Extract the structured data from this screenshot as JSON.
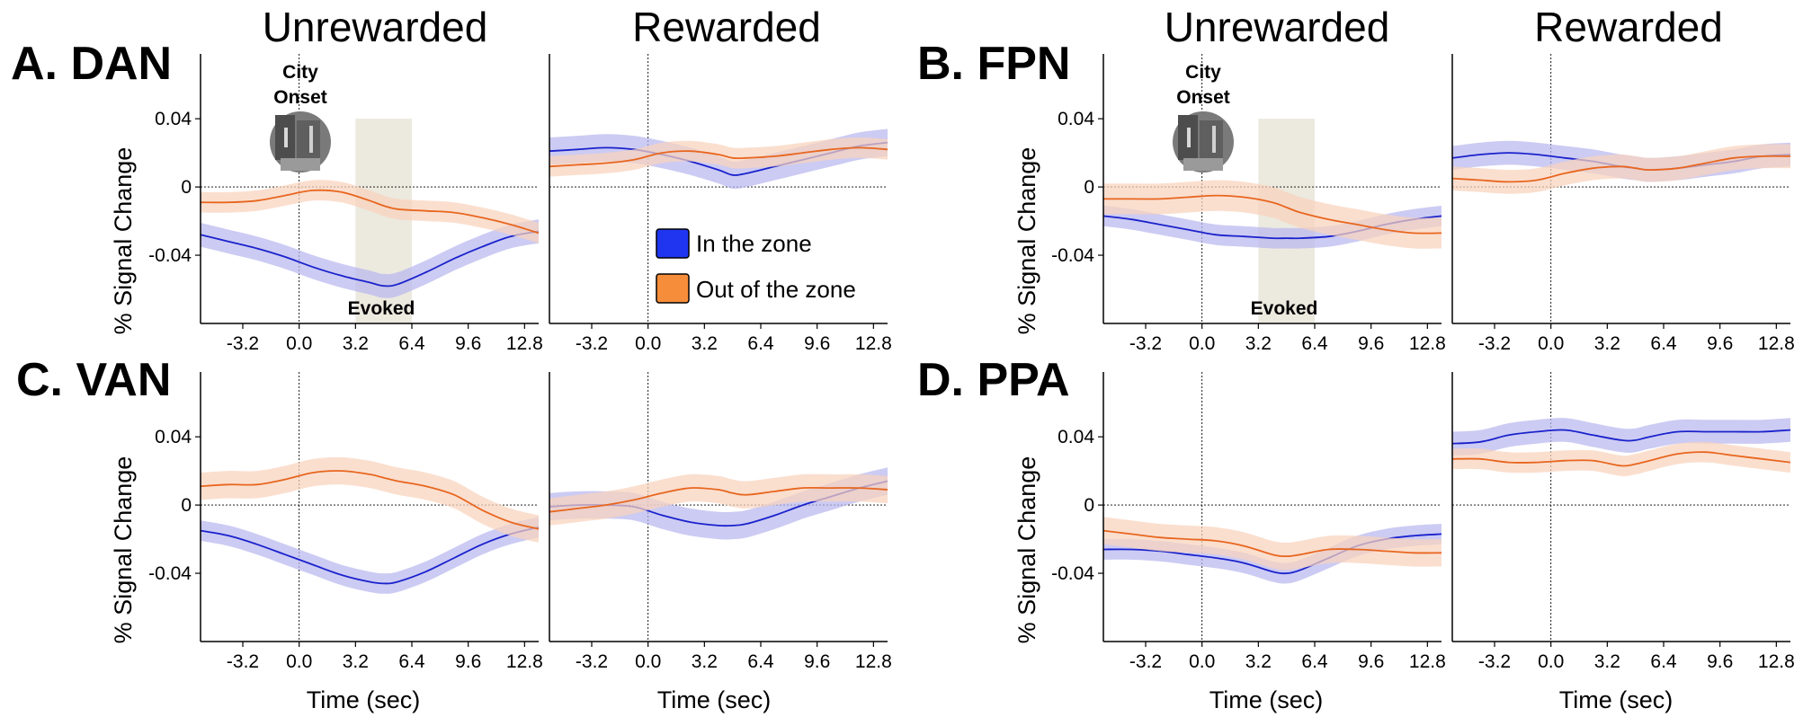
{
  "colors": {
    "in_zone": "#1a22cc",
    "in_zone_band": "#b9b7ef",
    "out_zone": "#e8661f",
    "out_zone_band": "#f8d3bd",
    "evoked_band": "#ece9df",
    "legend_in": "#1f35ef",
    "legend_out": "#f68d3a"
  },
  "column_titles": [
    "Unrewarded",
    "Rewarded",
    "Unrewarded",
    "Rewarded"
  ],
  "legend": {
    "in_zone": "In the zone",
    "out_zone": "Out of the zone"
  },
  "annotations": {
    "city_onset_line1": "City",
    "city_onset_line2": "Onset",
    "evoked": "Evoked"
  },
  "y_axis_label": "% Signal Change",
  "x_axis_label": "Time (sec)",
  "x_ticks": [
    "-3.2",
    "0.0",
    "3.2",
    "6.4",
    "9.6",
    "12.8"
  ],
  "y_ticks": [
    "0.04",
    "0",
    "-0.04"
  ],
  "chart_data": [
    {
      "type": "line",
      "panel": "A. DAN",
      "title": "Unrewarded",
      "xlabel": "",
      "ylabel": "% Signal Change",
      "xlim": [
        -5.6,
        13.6
      ],
      "ylim": [
        -0.08,
        0.078
      ],
      "x": [
        -5.6,
        -4.0,
        -2.4,
        -0.8,
        0.8,
        2.4,
        4.0,
        4.8,
        5.6,
        7.2,
        8.8,
        10.4,
        12.0,
        13.6
      ],
      "series": [
        {
          "name": "In the zone",
          "values": [
            -0.028,
            -0.032,
            -0.036,
            -0.041,
            -0.047,
            -0.052,
            -0.056,
            -0.058,
            -0.057,
            -0.05,
            -0.042,
            -0.035,
            -0.029,
            -0.026
          ],
          "error": 0.007
        },
        {
          "name": "Out of the zone",
          "values": [
            -0.009,
            -0.009,
            -0.008,
            -0.005,
            -0.002,
            -0.003,
            -0.008,
            -0.011,
            -0.013,
            -0.014,
            -0.015,
            -0.018,
            -0.022,
            -0.027
          ],
          "error": 0.006
        }
      ]
    },
    {
      "type": "line",
      "panel": "A. DAN",
      "title": "Rewarded",
      "xlabel": "",
      "ylabel": "",
      "xlim": [
        -5.6,
        13.6
      ],
      "ylim": [
        -0.08,
        0.078
      ],
      "x": [
        -5.6,
        -4.0,
        -2.4,
        -0.8,
        0.8,
        2.4,
        4.0,
        4.8,
        5.6,
        7.2,
        8.8,
        10.4,
        12.0,
        13.6
      ],
      "series": [
        {
          "name": "In the zone",
          "values": [
            0.021,
            0.022,
            0.023,
            0.022,
            0.019,
            0.015,
            0.01,
            0.007,
            0.008,
            0.012,
            0.016,
            0.02,
            0.024,
            0.026
          ],
          "error": 0.008
        },
        {
          "name": "Out of the zone",
          "values": [
            0.012,
            0.013,
            0.014,
            0.016,
            0.02,
            0.021,
            0.019,
            0.017,
            0.017,
            0.018,
            0.02,
            0.022,
            0.023,
            0.022
          ],
          "error": 0.006
        }
      ]
    },
    {
      "type": "line",
      "panel": "B. FPN",
      "title": "Unrewarded",
      "xlabel": "",
      "ylabel": "% Signal Change",
      "xlim": [
        -5.6,
        13.6
      ],
      "ylim": [
        -0.08,
        0.078
      ],
      "x": [
        -5.6,
        -4.0,
        -2.4,
        -0.8,
        0.8,
        2.4,
        4.0,
        4.8,
        5.6,
        7.2,
        8.8,
        10.4,
        12.0,
        13.6
      ],
      "series": [
        {
          "name": "In the zone",
          "values": [
            -0.017,
            -0.019,
            -0.022,
            -0.025,
            -0.028,
            -0.029,
            -0.03,
            -0.03,
            -0.03,
            -0.029,
            -0.026,
            -0.022,
            -0.019,
            -0.017
          ],
          "error": 0.006
        },
        {
          "name": "Out of the zone",
          "values": [
            -0.007,
            -0.007,
            -0.007,
            -0.006,
            -0.005,
            -0.006,
            -0.009,
            -0.012,
            -0.015,
            -0.019,
            -0.022,
            -0.025,
            -0.027,
            -0.027
          ],
          "error": 0.009
        }
      ]
    },
    {
      "type": "line",
      "panel": "B. FPN",
      "title": "Rewarded",
      "xlabel": "",
      "ylabel": "",
      "xlim": [
        -5.6,
        13.6
      ],
      "ylim": [
        -0.08,
        0.078
      ],
      "x": [
        -5.6,
        -4.0,
        -2.4,
        -0.8,
        0.8,
        2.4,
        4.0,
        4.8,
        5.6,
        7.2,
        8.8,
        10.4,
        12.0,
        13.6
      ],
      "series": [
        {
          "name": "In the zone",
          "values": [
            0.017,
            0.019,
            0.02,
            0.019,
            0.017,
            0.015,
            0.012,
            0.011,
            0.01,
            0.011,
            0.013,
            0.015,
            0.018,
            0.019
          ],
          "error": 0.007
        },
        {
          "name": "Out of the zone",
          "values": [
            0.005,
            0.004,
            0.003,
            0.004,
            0.008,
            0.011,
            0.012,
            0.011,
            0.01,
            0.011,
            0.014,
            0.017,
            0.018,
            0.018
          ],
          "error": 0.007
        }
      ]
    },
    {
      "type": "line",
      "panel": "C. VAN",
      "title": "Unrewarded",
      "xlabel": "Time (sec)",
      "ylabel": "% Signal Change",
      "xlim": [
        -5.6,
        13.6
      ],
      "ylim": [
        -0.08,
        0.078
      ],
      "x": [
        -5.6,
        -4.0,
        -2.4,
        -0.8,
        0.8,
        2.4,
        4.0,
        4.8,
        5.6,
        7.2,
        8.8,
        10.4,
        12.0,
        13.6
      ],
      "series": [
        {
          "name": "In the zone",
          "values": [
            -0.015,
            -0.018,
            -0.023,
            -0.029,
            -0.035,
            -0.041,
            -0.045,
            -0.046,
            -0.045,
            -0.039,
            -0.031,
            -0.023,
            -0.017,
            -0.013
          ],
          "error": 0.006
        },
        {
          "name": "Out of the zone",
          "values": [
            0.011,
            0.012,
            0.012,
            0.015,
            0.019,
            0.02,
            0.018,
            0.016,
            0.014,
            0.011,
            0.006,
            -0.003,
            -0.01,
            -0.014
          ],
          "error": 0.008
        }
      ]
    },
    {
      "type": "line",
      "panel": "C. VAN",
      "title": "Rewarded",
      "xlabel": "Time (sec)",
      "ylabel": "",
      "xlim": [
        -5.6,
        13.6
      ],
      "ylim": [
        -0.08,
        0.078
      ],
      "x": [
        -5.6,
        -4.0,
        -2.4,
        -0.8,
        0.8,
        2.4,
        4.0,
        4.8,
        5.6,
        7.2,
        8.8,
        10.4,
        12.0,
        13.6
      ],
      "series": [
        {
          "name": "In the zone",
          "values": [
            -0.001,
            0.0,
            0.0,
            -0.001,
            -0.006,
            -0.01,
            -0.012,
            -0.012,
            -0.011,
            -0.006,
            0.0,
            0.005,
            0.01,
            0.014
          ],
          "error": 0.008
        },
        {
          "name": "Out of the zone",
          "values": [
            -0.004,
            -0.002,
            0.0,
            0.003,
            0.007,
            0.01,
            0.009,
            0.007,
            0.006,
            0.008,
            0.01,
            0.01,
            0.01,
            0.009
          ],
          "error": 0.008
        }
      ]
    },
    {
      "type": "line",
      "panel": "D. PPA",
      "title": "Unrewarded",
      "xlabel": "Time (sec)",
      "ylabel": "% Signal Change",
      "xlim": [
        -5.6,
        13.6
      ],
      "ylim": [
        -0.08,
        0.078
      ],
      "x": [
        -5.6,
        -4.0,
        -2.4,
        -0.8,
        0.8,
        2.4,
        4.0,
        4.8,
        5.6,
        7.2,
        8.8,
        10.4,
        12.0,
        13.6
      ],
      "series": [
        {
          "name": "In the zone",
          "values": [
            -0.026,
            -0.026,
            -0.027,
            -0.029,
            -0.031,
            -0.034,
            -0.039,
            -0.04,
            -0.038,
            -0.031,
            -0.024,
            -0.02,
            -0.018,
            -0.017
          ],
          "error": 0.006
        },
        {
          "name": "Out of the zone",
          "values": [
            -0.015,
            -0.017,
            -0.019,
            -0.02,
            -0.021,
            -0.024,
            -0.029,
            -0.03,
            -0.029,
            -0.026,
            -0.026,
            -0.027,
            -0.028,
            -0.028
          ],
          "error": 0.008
        }
      ]
    },
    {
      "type": "line",
      "panel": "D. PPA",
      "title": "Rewarded",
      "xlabel": "Time (sec)",
      "ylabel": "",
      "xlim": [
        -5.6,
        13.6
      ],
      "ylim": [
        -0.08,
        0.078
      ],
      "x": [
        -5.6,
        -4.0,
        -2.4,
        -0.8,
        0.8,
        2.4,
        4.0,
        4.8,
        5.6,
        7.2,
        8.8,
        10.4,
        12.0,
        13.6
      ],
      "series": [
        {
          "name": "In the zone",
          "values": [
            0.036,
            0.037,
            0.041,
            0.043,
            0.044,
            0.041,
            0.038,
            0.038,
            0.04,
            0.043,
            0.043,
            0.043,
            0.043,
            0.044
          ],
          "error": 0.007
        },
        {
          "name": "Out of the zone",
          "values": [
            0.027,
            0.027,
            0.025,
            0.025,
            0.026,
            0.026,
            0.023,
            0.024,
            0.026,
            0.03,
            0.031,
            0.029,
            0.027,
            0.025
          ],
          "error": 0.006
        }
      ]
    }
  ]
}
